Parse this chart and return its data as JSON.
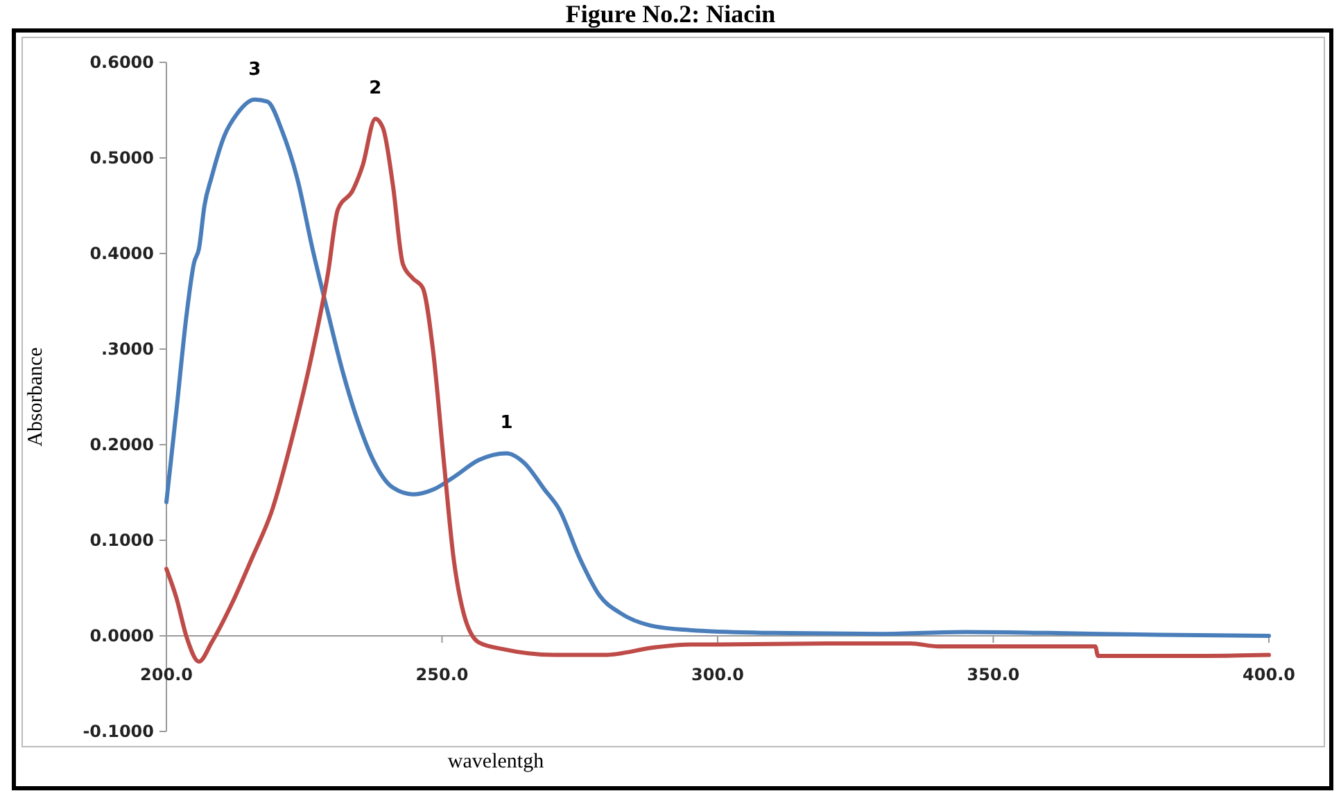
{
  "chart_data": {
    "type": "line",
    "title": "Figure No.2: Niacin",
    "xlabel": "wavelentgh",
    "ylabel": "Absorbance",
    "xlim": [
      200,
      400
    ],
    "xticks": [
      {
        "value": 200,
        "label": "200.0"
      },
      {
        "value": 250,
        "label": "250.0"
      },
      {
        "value": 300,
        "label": "300.0"
      },
      {
        "value": 350,
        "label": "350.0"
      },
      {
        "value": 400,
        "label": "400.0"
      }
    ],
    "ylim": [
      -0.1,
      0.6
    ],
    "yticks": [
      {
        "value": -0.1,
        "label": "-0.1000"
      },
      {
        "value": 0,
        "label": "0.0000"
      },
      {
        "value": 0.1,
        "label": "0.1000"
      },
      {
        "value": 0.2,
        "label": "0.2000"
      },
      {
        "value": 0.3,
        "label": ".3000"
      },
      {
        "value": 0.4,
        "label": "0.4000"
      },
      {
        "value": 0.5,
        "label": "0.5000"
      },
      {
        "value": 0.6,
        "label": "0.6000"
      }
    ],
    "grid": false,
    "marker": "none",
    "line_style": "solid",
    "series": [
      {
        "color": "#4a7ebb",
        "x": [
          200,
          201.8,
          203.7,
          205,
          205.9,
          206.9,
          208.2,
          210.5,
          212.8,
          216,
          218.3,
          221,
          223.8,
          226.5,
          229.3,
          232,
          234.7,
          237.5,
          241.1,
          244.8,
          248.4,
          252.1,
          256.7,
          261.7,
          264.9,
          268.6,
          271.3,
          275,
          278.6,
          282.3,
          287.7,
          295,
          310,
          330,
          345,
          360,
          380,
          400
        ],
        "values": [
          0.14,
          0.235,
          0.338,
          0.39,
          0.405,
          0.45,
          0.48,
          0.523,
          0.546,
          0.561,
          0.559,
          0.528,
          0.477,
          0.405,
          0.338,
          0.276,
          0.225,
          0.184,
          0.155,
          0.148,
          0.153,
          0.166,
          0.184,
          0.191,
          0.181,
          0.153,
          0.132,
          0.081,
          0.042,
          0.024,
          0.011,
          0.006,
          0.003,
          0.002,
          0.004,
          0.003,
          0.001,
          0.0
        ]
      },
      {
        "color": "#be4b48",
        "x": [
          200,
          201.8,
          203.7,
          205.9,
          208.2,
          211.9,
          215.5,
          219.2,
          222.9,
          226.5,
          229.3,
          231.1,
          233.8,
          235.6,
          237.9,
          239.3,
          241.1,
          242.9,
          244.7,
          246.5,
          248.4,
          250.3,
          252.1,
          253.9,
          256.7,
          261.2,
          270.4,
          279.5,
          288.7,
          295,
          300,
          320,
          335,
          340,
          355,
          368.5,
          369,
          385,
          400
        ],
        "values": [
          0.07,
          0.04,
          -0.002,
          -0.027,
          -0.007,
          0.034,
          0.081,
          0.132,
          0.209,
          0.297,
          0.379,
          0.446,
          0.466,
          0.492,
          0.541,
          0.531,
          0.471,
          0.389,
          0.374,
          0.364,
          0.297,
          0.184,
          0.081,
          0.024,
          -0.007,
          -0.014,
          -0.02,
          -0.02,
          -0.012,
          -0.009,
          -0.009,
          -0.008,
          -0.008,
          -0.011,
          -0.011,
          -0.011,
          -0.021,
          -0.021,
          -0.02
        ]
      }
    ],
    "annotations": [
      {
        "text": "3",
        "x": 216,
        "y": 0.561
      },
      {
        "text": "2",
        "x": 237.9,
        "y": 0.541
      },
      {
        "text": "1",
        "x": 261.7,
        "y": 0.191
      }
    ]
  }
}
